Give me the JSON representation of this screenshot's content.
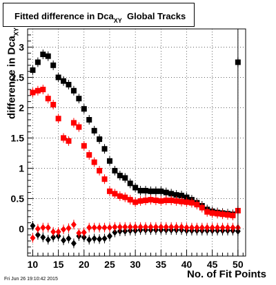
{
  "title": {
    "main": "Fitted difference in Dca",
    "sub": "XY",
    "suffix": "  Global Tracks"
  },
  "xlabel": "No. of Fit Points",
  "ylabel": {
    "main": "difference in Dca",
    "sub": "XY"
  },
  "timestamp": "Fri Jun 26 19:10:42 2015",
  "chart_data": {
    "type": "scatter",
    "xlim": [
      9,
      51.5
    ],
    "ylim": [
      -0.45,
      3.3
    ],
    "xticks": [
      10,
      15,
      20,
      25,
      30,
      35,
      40,
      45,
      50
    ],
    "yticks": [
      0,
      0.5,
      1,
      1.5,
      2,
      2.5,
      3
    ],
    "grid": true,
    "x": [
      10,
      11,
      12,
      13,
      14,
      15,
      16,
      17,
      18,
      19,
      20,
      21,
      22,
      23,
      24,
      25,
      26,
      27,
      28,
      29,
      30,
      31,
      32,
      33,
      34,
      35,
      36,
      37,
      38,
      39,
      40,
      41,
      42,
      43,
      44,
      45,
      46,
      47,
      48,
      49,
      50
    ],
    "series": [
      {
        "color": "#000000",
        "marker": "square",
        "values": [
          2.62,
          2.75,
          2.88,
          2.85,
          2.7,
          2.5,
          2.44,
          2.38,
          2.28,
          2.15,
          1.98,
          1.8,
          1.62,
          1.48,
          1.32,
          1.12,
          0.96,
          0.88,
          0.84,
          0.75,
          0.68,
          0.63,
          0.63,
          0.62,
          0.62,
          0.62,
          0.6,
          0.58,
          0.56,
          0.55,
          0.52,
          0.48,
          0.43,
          0.38,
          0.32,
          0.29,
          0.27,
          0.26,
          0.25,
          0.24,
          2.75
        ]
      },
      {
        "color": "#ff0000",
        "marker": "square",
        "values": [
          2.25,
          2.28,
          2.3,
          2.15,
          2.05,
          1.82,
          1.5,
          1.45,
          1.75,
          1.68,
          1.37,
          1.22,
          1.1,
          0.96,
          0.82,
          0.62,
          0.58,
          0.54,
          0.52,
          0.48,
          0.44,
          0.46,
          0.47,
          0.48,
          0.47,
          0.46,
          0.47,
          0.47,
          0.46,
          0.45,
          0.44,
          0.43,
          0.4,
          0.35,
          0.28,
          0.26,
          0.25,
          0.24,
          0.23,
          0.22,
          0.3
        ]
      },
      {
        "color": "#000000",
        "marker": "diamond",
        "values": [
          0.05,
          -0.1,
          -0.14,
          -0.18,
          -0.14,
          -0.12,
          -0.19,
          -0.16,
          -0.24,
          -0.12,
          -0.14,
          -0.18,
          -0.16,
          -0.17,
          -0.16,
          -0.12,
          -0.06,
          -0.04,
          -0.04,
          -0.03,
          -0.03,
          -0.02,
          -0.02,
          -0.02,
          -0.02,
          -0.02,
          -0.02,
          -0.02,
          -0.02,
          -0.02,
          -0.03,
          -0.03,
          -0.03,
          -0.03,
          -0.03,
          -0.03,
          -0.03,
          -0.03,
          -0.03,
          -0.03,
          -0.04
        ]
      },
      {
        "color": "#ff0000",
        "marker": "diamond",
        "values": [
          -0.15,
          0.0,
          0.02,
          0.02,
          -0.05,
          -0.05,
          -0.01,
          0.01,
          0.07,
          -0.07,
          -0.06,
          0.02,
          0.02,
          0.02,
          0.02,
          0.02,
          0.03,
          0.03,
          0.03,
          0.03,
          0.03,
          0.03,
          0.03,
          0.03,
          0.03,
          0.03,
          0.03,
          0.03,
          0.03,
          0.03,
          0.02,
          0.02,
          0.02,
          0.02,
          0.02,
          0.02,
          0.02,
          0.02,
          0.02,
          0.02,
          0.02
        ]
      }
    ]
  }
}
